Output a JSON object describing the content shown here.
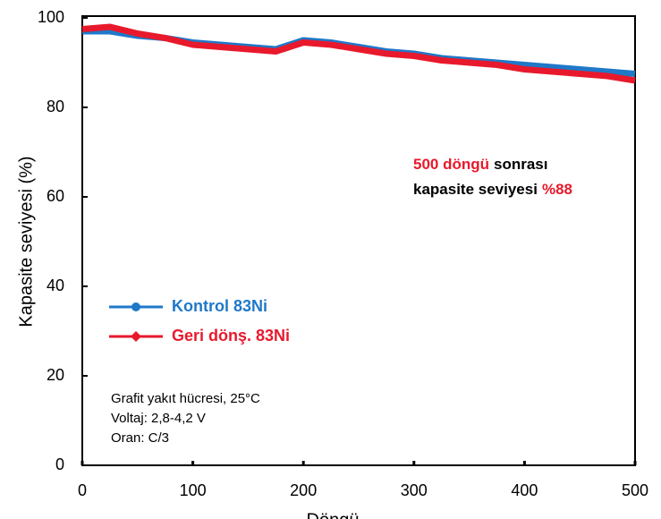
{
  "chart_data": {
    "type": "line",
    "x_label": "Döngü",
    "y_label": "Kapasite seviyesi (%)",
    "x": [
      0,
      25,
      50,
      75,
      100,
      125,
      150,
      175,
      200,
      225,
      250,
      275,
      300,
      325,
      350,
      375,
      400,
      425,
      450,
      475,
      500
    ],
    "series": [
      {
        "name": "Kontrol 83Ni",
        "color": "#1f78c8",
        "values": [
          97,
          97,
          96,
          95.5,
          94.5,
          94,
          93.5,
          93,
          95,
          94.5,
          93.5,
          92.5,
          92,
          91,
          90.5,
          90,
          89.5,
          89,
          88.5,
          88,
          87.5
        ]
      },
      {
        "name": "Geri dönş. 83Ni",
        "color": "#e8192c",
        "values": [
          97.5,
          98,
          96.5,
          95.5,
          94,
          93.5,
          93,
          92.5,
          94.5,
          94,
          93,
          92,
          91.5,
          90.5,
          90,
          89.5,
          88.5,
          88,
          87.5,
          87,
          86
        ]
      }
    ],
    "xlim": [
      0,
      500
    ],
    "xticks": [
      0,
      100,
      200,
      300,
      400,
      500
    ],
    "ylim": [
      0,
      100
    ],
    "yticks": [
      0,
      20,
      40,
      60,
      80,
      100
    ],
    "annotation": [
      [
        {
          "text": "500 döngü",
          "color": "#e8192c"
        },
        {
          "text": "sonrası",
          "color": "#000000"
        }
      ],
      [
        {
          "text": "kapasite seviyesi",
          "color": "#000000"
        },
        {
          "text": "%88",
          "color": "#e8192c"
        }
      ]
    ],
    "notes": [
      "Grafit yakıt hücresi, 25°C",
      "Voltaj: 2,8-4,2 V",
      "Oran: C/3"
    ]
  }
}
